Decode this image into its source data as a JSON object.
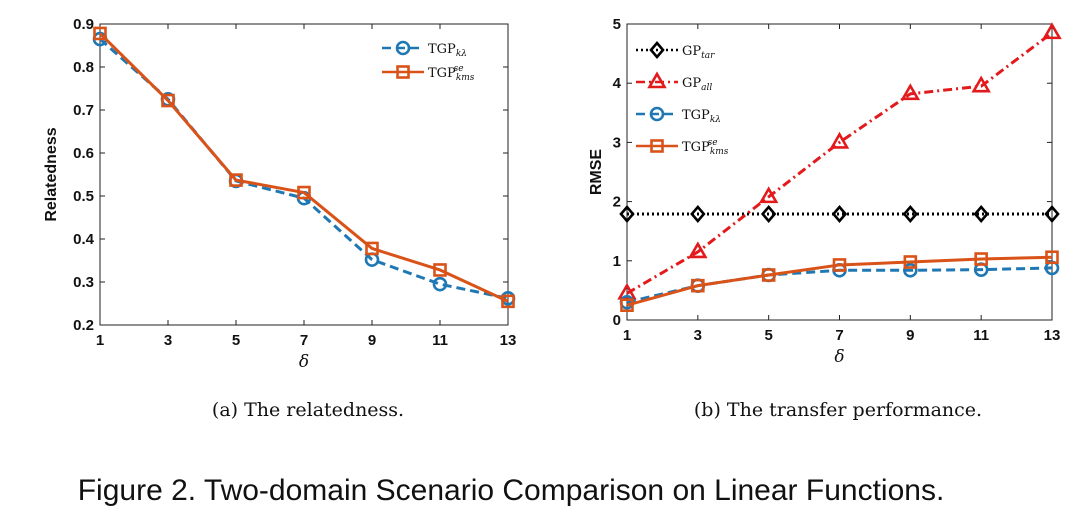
{
  "figure_caption": "Figure 2. Two-domain Scenario Comparison on Linear Functions.",
  "colors": {
    "blue": "#1f78b4",
    "orange": "#d95319",
    "red": "#e31a1c",
    "black": "#000000"
  },
  "chart_data": [
    {
      "type": "line",
      "caption": "(a) The relatedness.",
      "xlabel": "δ",
      "ylabel": "Relatedness",
      "x": [
        1,
        3,
        5,
        7,
        9,
        11,
        13
      ],
      "xticks": [
        "1",
        "3",
        "5",
        "7",
        "9",
        "11",
        "13"
      ],
      "xlim": [
        1,
        13
      ],
      "ylim": [
        0.2,
        0.9
      ],
      "yticks": [
        "0.2",
        "0.3",
        "0.4",
        "0.5",
        "0.6",
        "0.7",
        "0.8",
        "0.9"
      ],
      "legend_position": "top-right",
      "series": [
        {
          "name": "TGP",
          "sub": "kλ",
          "sup": "",
          "color": "blue",
          "dash": "dash",
          "marker": "circle",
          "values": [
            0.865,
            0.725,
            0.535,
            0.495,
            0.352,
            0.295,
            0.262
          ]
        },
        {
          "name": "TGP",
          "sub": "kms",
          "sup": "se",
          "color": "orange",
          "dash": "solid",
          "marker": "square",
          "values": [
            0.878,
            0.722,
            0.537,
            0.508,
            0.378,
            0.328,
            0.255
          ]
        }
      ]
    },
    {
      "type": "line",
      "caption": "(b) The transfer performance.",
      "xlabel": "δ",
      "ylabel": "RMSE",
      "x": [
        1,
        3,
        5,
        7,
        9,
        11,
        13
      ],
      "xticks": [
        "1",
        "3",
        "5",
        "7",
        "9",
        "11",
        "13"
      ],
      "xlim": [
        1,
        13
      ],
      "ylim": [
        0,
        5
      ],
      "yticks": [
        "0",
        "1",
        "2",
        "3",
        "4",
        "5"
      ],
      "legend_position": "top-left",
      "series": [
        {
          "name": "GP",
          "sub": "tar",
          "sup": "",
          "color": "black",
          "dash": "dot",
          "marker": "diamond",
          "values": [
            1.79,
            1.79,
            1.79,
            1.79,
            1.79,
            1.79,
            1.79
          ]
        },
        {
          "name": "GP",
          "sub": "all",
          "sup": "",
          "color": "red",
          "dash": "dashdot",
          "marker": "triangle",
          "values": [
            0.45,
            1.15,
            2.08,
            3.0,
            3.82,
            3.95,
            4.85
          ]
        },
        {
          "name": "TGP",
          "sub": "kλ",
          "sup": "",
          "color": "blue",
          "dash": "dash",
          "marker": "circle",
          "values": [
            0.3,
            0.58,
            0.76,
            0.84,
            0.84,
            0.85,
            0.88
          ]
        },
        {
          "name": "TGP",
          "sub": "kms",
          "sup": "se",
          "color": "orange",
          "dash": "solid",
          "marker": "square",
          "values": [
            0.25,
            0.58,
            0.76,
            0.93,
            0.98,
            1.03,
            1.06
          ]
        }
      ]
    }
  ]
}
